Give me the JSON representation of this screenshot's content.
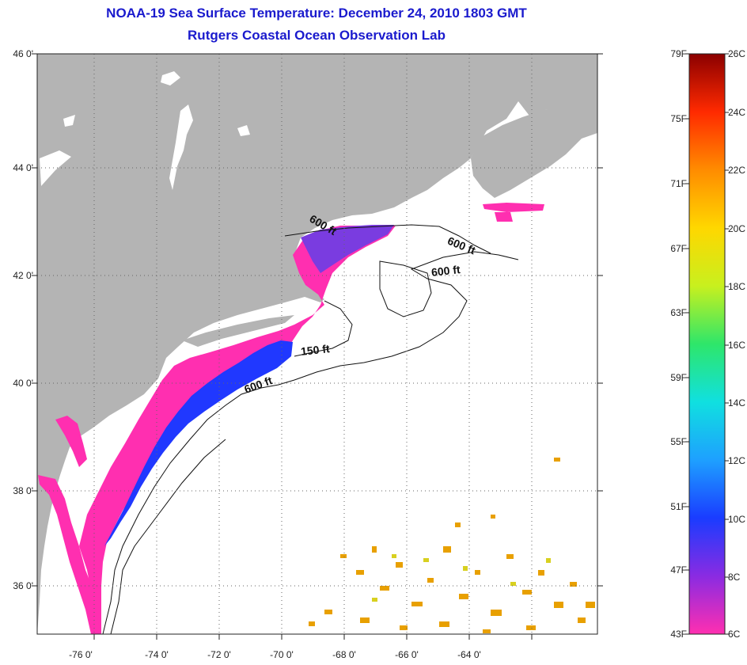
{
  "title_line1": "NOAA-19 Sea Surface Temperature:  December 24, 2010 1803 GMT",
  "title_line2": "Rutgers Coastal Ocean Observation Lab",
  "lat_labels": [
    "46 0'",
    "44 0'",
    "42 0'",
    "40 0'",
    "38 0'",
    "36 0'"
  ],
  "lon_labels": [
    "-76 0'",
    "-74 0'",
    "-72 0'",
    "-70 0'",
    "-68 0'",
    "-66 0'",
    "-64 0'"
  ],
  "contour_labels": [
    "600 ft",
    "600 ft",
    "600 ft",
    "150 ft",
    "600 ft"
  ],
  "colorbar": {
    "fahrenheit": [
      "79F",
      "75F",
      "71F",
      "67F",
      "63F",
      "59F",
      "55F",
      "51F",
      "47F",
      "43F"
    ],
    "celsius": [
      "26C",
      "24C",
      "22C",
      "20C",
      "18C",
      "16C",
      "14C",
      "12C",
      "10C",
      "8C",
      "6C"
    ],
    "colors": [
      "#ff2fb0",
      "#8a2be2",
      "#1a3cff",
      "#1ea0ff",
      "#10e0e0",
      "#2ee66a",
      "#c8f01e",
      "#ffd700",
      "#ff8c00",
      "#ff2a00",
      "#8b0000"
    ]
  },
  "colors": {
    "land": "#b4b4b4",
    "ocean": "#ffffff",
    "title": "#1a1acd",
    "cold_water": "#ff2fb0",
    "mid_water": "#2038ff",
    "warm_water": "#e8a000"
  }
}
